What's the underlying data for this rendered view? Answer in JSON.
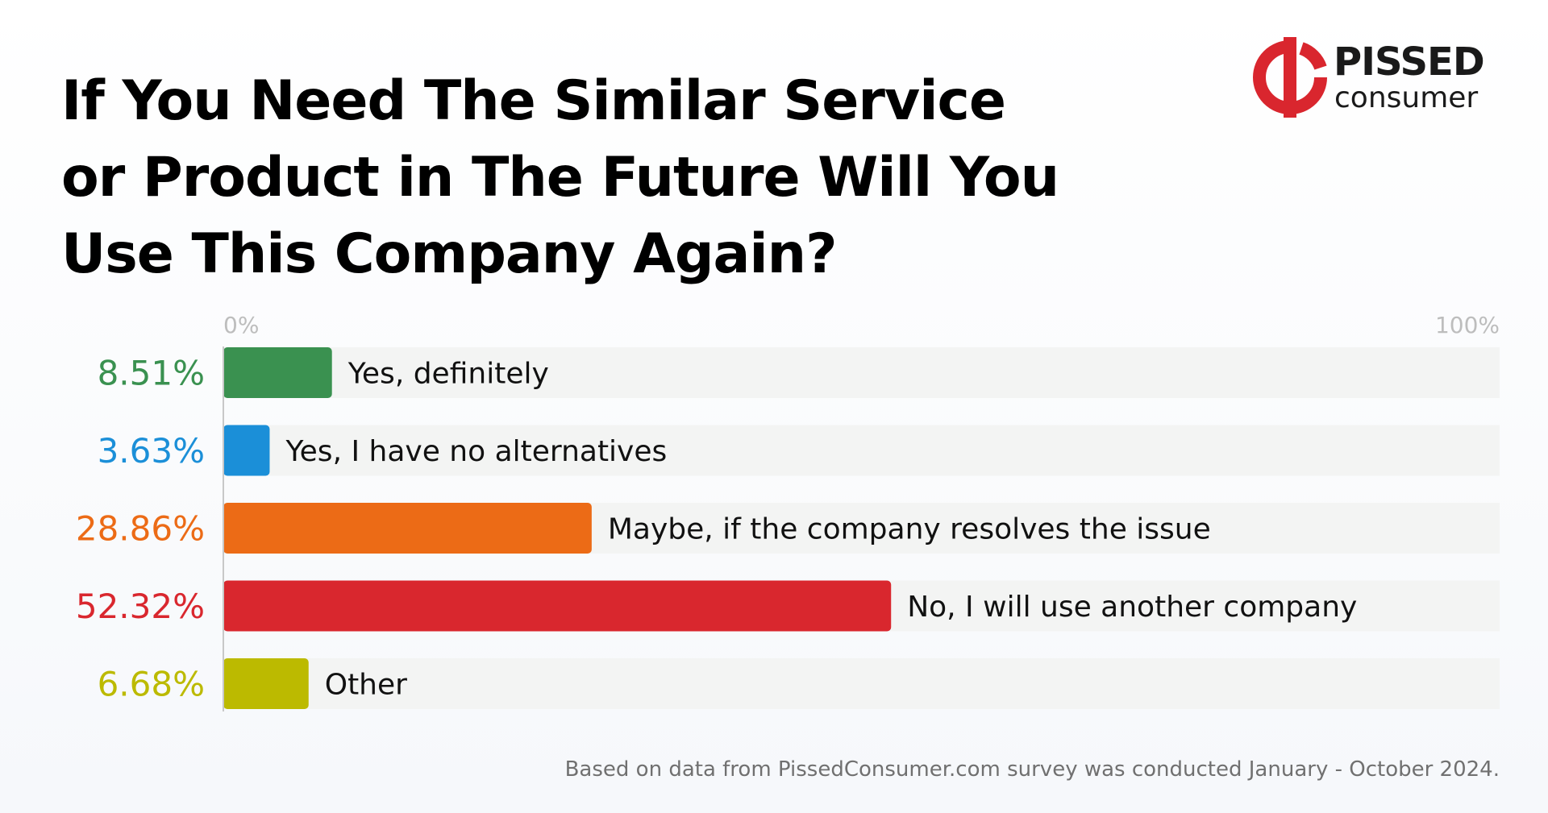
{
  "title_lines": [
    "If You Need The Similar Service",
    "or Product in The Future Will You",
    "Use This Company Again?"
  ],
  "logo": {
    "line1": "PISSED",
    "line2": "consumer",
    "color": "#d9262e"
  },
  "footnote": "Based on data from PissedConsumer.com survey was conducted January - October 2024.",
  "chart_data": {
    "type": "bar",
    "orientation": "horizontal",
    "categories": [
      "Yes, definitely",
      "Yes, I have no alternatives",
      "Maybe, if the company resolves the issue",
      "No, I will use another company",
      "Other"
    ],
    "values": [
      8.51,
      3.63,
      28.86,
      52.32,
      6.68
    ],
    "value_labels": [
      "8.51%",
      "3.63%",
      "28.86%",
      "52.32%",
      "6.68%"
    ],
    "colors": [
      "#3a9150",
      "#1b8fd8",
      "#ec6b16",
      "#d9272e",
      "#bcba00"
    ],
    "xlim": [
      0,
      100
    ],
    "tick_labels": [
      "0%",
      "100%"
    ],
    "grid": false,
    "legend": "none"
  }
}
